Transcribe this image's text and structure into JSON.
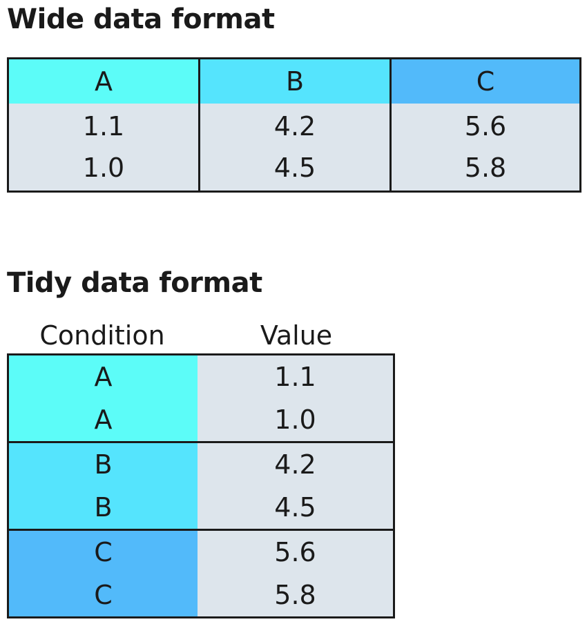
{
  "colors": {
    "a": "#5cfcf8",
    "b": "#55e4fd",
    "c": "#52bafa",
    "data_bg": "#dde5ec",
    "border": "#1a1a1a"
  },
  "wide": {
    "title": "Wide data format",
    "columns": [
      {
        "name": "A",
        "values": [
          "1.1",
          "1.0"
        ]
      },
      {
        "name": "B",
        "values": [
          "4.2",
          "4.5"
        ]
      },
      {
        "name": "C",
        "values": [
          "5.6",
          "5.8"
        ]
      }
    ]
  },
  "tidy": {
    "title": "Tidy data format",
    "header_condition": "Condition",
    "header_value": "Value",
    "groups": [
      {
        "condition": [
          "A",
          "A"
        ],
        "value": [
          "1.1",
          "1.0"
        ]
      },
      {
        "condition": [
          "B",
          "B"
        ],
        "value": [
          "4.2",
          "4.5"
        ]
      },
      {
        "condition": [
          "C",
          "C"
        ],
        "value": [
          "5.6",
          "5.8"
        ]
      }
    ]
  }
}
